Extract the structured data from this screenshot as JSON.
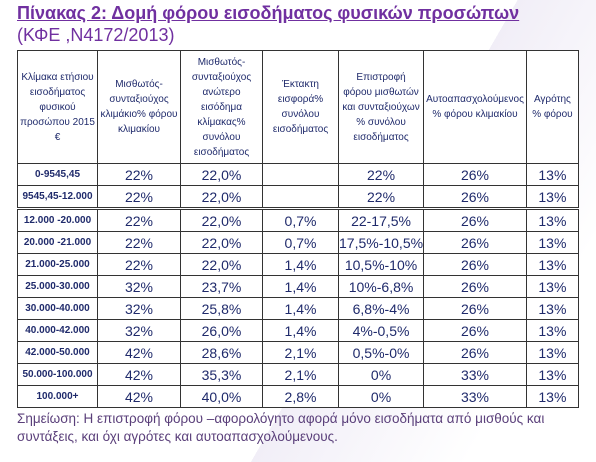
{
  "header": {
    "title": "Πίνακας 2: Δομή φόρου εισοδήματος φυσικών προσώπων",
    "subtitle": "(ΚΦΕ ,Ν4172/2013)"
  },
  "table": {
    "columns": [
      "Κλίμακα ετήσιου εισοδήματος φυσικού προσώπου 2015 €",
      "Μισθωτός-συνταξιούχος κλιμάκιο% φόρου κλιμακίου",
      "Μισθωτός-συνταξιούχος ανώτερο εισόδημα κλίμακας% συνόλου εισοδήματος",
      "Έκτακτη εισφορά% συνόλου εισοδήματος",
      "Επιστροφή φόρου μισθωτών και συνταξιούχων % συνόλου εισοδήματος",
      "Αυτοαπασχολούμενος % φόρου κλιμακίου",
      "Αγρότης % φόρου"
    ],
    "rows": [
      [
        "0-9545,45",
        "22%",
        "22,0%",
        null,
        "22%",
        "26%",
        "13%"
      ],
      [
        "9545,45-12.000",
        "22%",
        "22,0%",
        null,
        "22%",
        "26%",
        "13%"
      ],
      [
        "12.000 -20.000",
        "22%",
        "22,0%",
        "0,7%",
        "22-17,5%",
        "26%",
        "13%"
      ],
      [
        "20.000 -21.000",
        "22%",
        "22,0%",
        "0,7%",
        "17,5%-10,5%",
        "26%",
        "13%"
      ],
      [
        "21.000-25.000",
        "22%",
        "22,0%",
        "1,4%",
        "10,5%-10%",
        "26%",
        "13%"
      ],
      [
        "25.000-30.000",
        "32%",
        "23,7%",
        "1,4%",
        "10%-6,8%",
        "26%",
        "13%"
      ],
      [
        "30.000-40.000",
        "32%",
        "25,8%",
        "1,4%",
        "6,8%-4%",
        "26%",
        "13%"
      ],
      [
        "40.000-42.000",
        "32%",
        "26,0%",
        "1,4%",
        "4%-0,5%",
        "26%",
        "13%"
      ],
      [
        "42.000-50.000",
        "42%",
        "28,6%",
        "2,1%",
        "0,5%-0%",
        "26%",
        "13%"
      ],
      [
        "50.000-100.000",
        "42%",
        "35,3%",
        "2,1%",
        "0%",
        "33%",
        "13%"
      ],
      [
        "100.000+",
        "42%",
        "40,0%",
        "2,8%",
        "0%",
        "33%",
        "13%"
      ]
    ]
  },
  "note": "Σημείωση: Η επιστροφή φόρου –αφορολόγητο αφορά μόνο εισοδήματα από μισθούς και συντάξεις, και όχι αγρότες και αυτοαπασχολούμενους."
}
